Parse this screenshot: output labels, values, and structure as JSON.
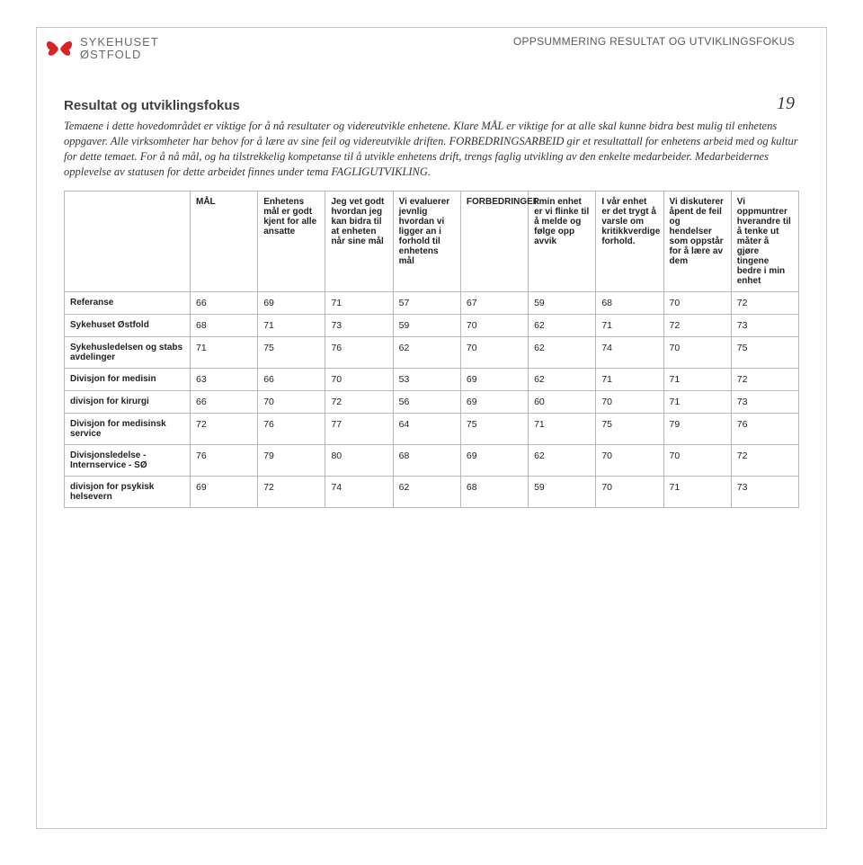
{
  "logo": {
    "line1": "SYKEHUSET",
    "line2": "ØSTFOLD",
    "petal_color": "#d8232a",
    "logo_text_color": "#6a6a6a"
  },
  "header_label": "OPPSUMMERING RESULTAT OG UTVIKLINGSFOKUS",
  "page_number": "19",
  "section_title": "Resultat og utviklingsfokus",
  "paragraph": "Temaene i dette hovedområdet er viktige for å nå resultater og videreutvikle enhetene. Klare MÅL er viktige for at alle        skal kunne bidra best mulig til enhetens oppgaver. Alle virksomheter har behov for å lære av sine feil og videreutvikle driften. FORBEDRINGSARBEID gir et resultattall for enhetens arbeid med og kultur for dette temaet. For å nå mål, og ha tilstrekkelig kompetanse til å utvikle enhetens drift, trengs faglig utvikling av den enkelte medarbeider. Medarbeidernes opplevelse av statusen for dette arbeidet finnes under tema FAGLIGUTVIKLING.",
  "table": {
    "columns": [
      "",
      "MÅL",
      "Enhetens mål er godt kjent for alle ansatte",
      "Jeg vet godt hvordan jeg kan bidra til at enheten når sine mål",
      "Vi evaluerer jevnlig hvordan vi ligger an i forhold til enhetens mål",
      "FORBEDRINGER",
      "I min enhet er vi flinke til å melde og følge opp avvik",
      "I vår enhet er det trygt å varsle om kritikkverdige forhold.",
      "Vi diskuterer åpent de feil og hendelser som oppstår for å lære av dem",
      "Vi oppmuntrer hverandre til å tenke ut måter å gjøre tingene bedre i min enhet"
    ],
    "rows": [
      {
        "label": "Referanse",
        "values": [
          "66",
          "69",
          "71",
          "57",
          "67",
          "59",
          "68",
          "70",
          "72"
        ]
      },
      {
        "label": "Sykehuset Østfold",
        "values": [
          "68",
          "71",
          "73",
          "59",
          "70",
          "62",
          "71",
          "72",
          "73"
        ]
      },
      {
        "label": "Sykehusledelsen og stabs avdelinger",
        "values": [
          "71",
          "75",
          "76",
          "62",
          "70",
          "62",
          "74",
          "70",
          "75"
        ]
      },
      {
        "label": "Divisjon for medisin",
        "values": [
          "63",
          "66",
          "70",
          "53",
          "69",
          "62",
          "71",
          "71",
          "72"
        ]
      },
      {
        "label": "divisjon for kirurgi",
        "values": [
          "66",
          "70",
          "72",
          "56",
          "69",
          "60",
          "70",
          "71",
          "73"
        ]
      },
      {
        "label": "Divisjon for medisinsk service",
        "values": [
          "72",
          "76",
          "77",
          "64",
          "75",
          "71",
          "75",
          "79",
          "76"
        ]
      },
      {
        "label": "Divisjonsledelse - Internservice - SØ",
        "values": [
          "76",
          "79",
          "80",
          "68",
          "69",
          "62",
          "70",
          "70",
          "72"
        ]
      },
      {
        "label": "divisjon for psykisk helsevern",
        "values": [
          "69",
          "72",
          "74",
          "62",
          "68",
          "59",
          "70",
          "71",
          "73"
        ]
      }
    ],
    "border_color": "#b8b8b8",
    "header_fontsize": 10,
    "cell_fontsize": 10.5
  },
  "colors": {
    "frame_border": "#c8c8c8",
    "text_body": "#333333",
    "text_header": "#5a5a5a"
  }
}
